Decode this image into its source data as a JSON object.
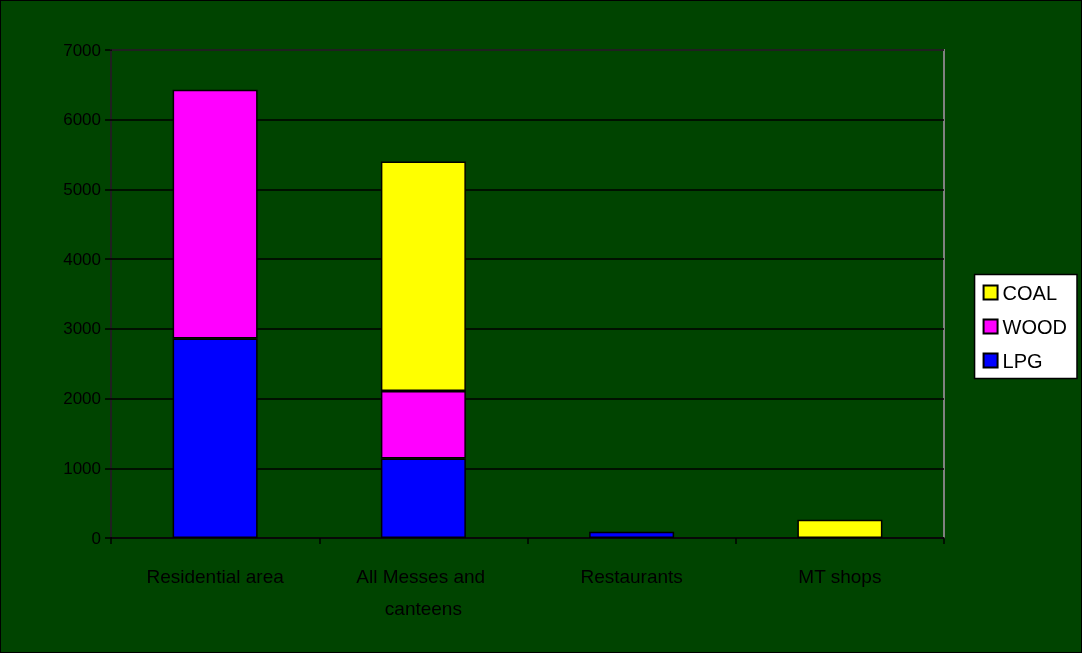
{
  "chart_data": {
    "type": "bar",
    "stacked": true,
    "categories": [
      "Residential area",
      "All Messes and canteens",
      "Restaurants",
      "MT shops"
    ],
    "series": [
      {
        "name": "LPG",
        "color": "#0000ff",
        "values": [
          2860,
          1140,
          90,
          null
        ]
      },
      {
        "name": "WOOD",
        "color": "#ff00ff",
        "values": [
          3570,
          970,
          null,
          null
        ]
      },
      {
        "name": "COAL",
        "color": "#ffff00",
        "values": [
          null,
          3290,
          null,
          260
        ]
      }
    ],
    "ylim": [
      0,
      7000
    ],
    "yticks": [
      0,
      1000,
      2000,
      3000,
      4000,
      5000,
      6000,
      7000
    ],
    "grid": "y",
    "legend": "right"
  }
}
